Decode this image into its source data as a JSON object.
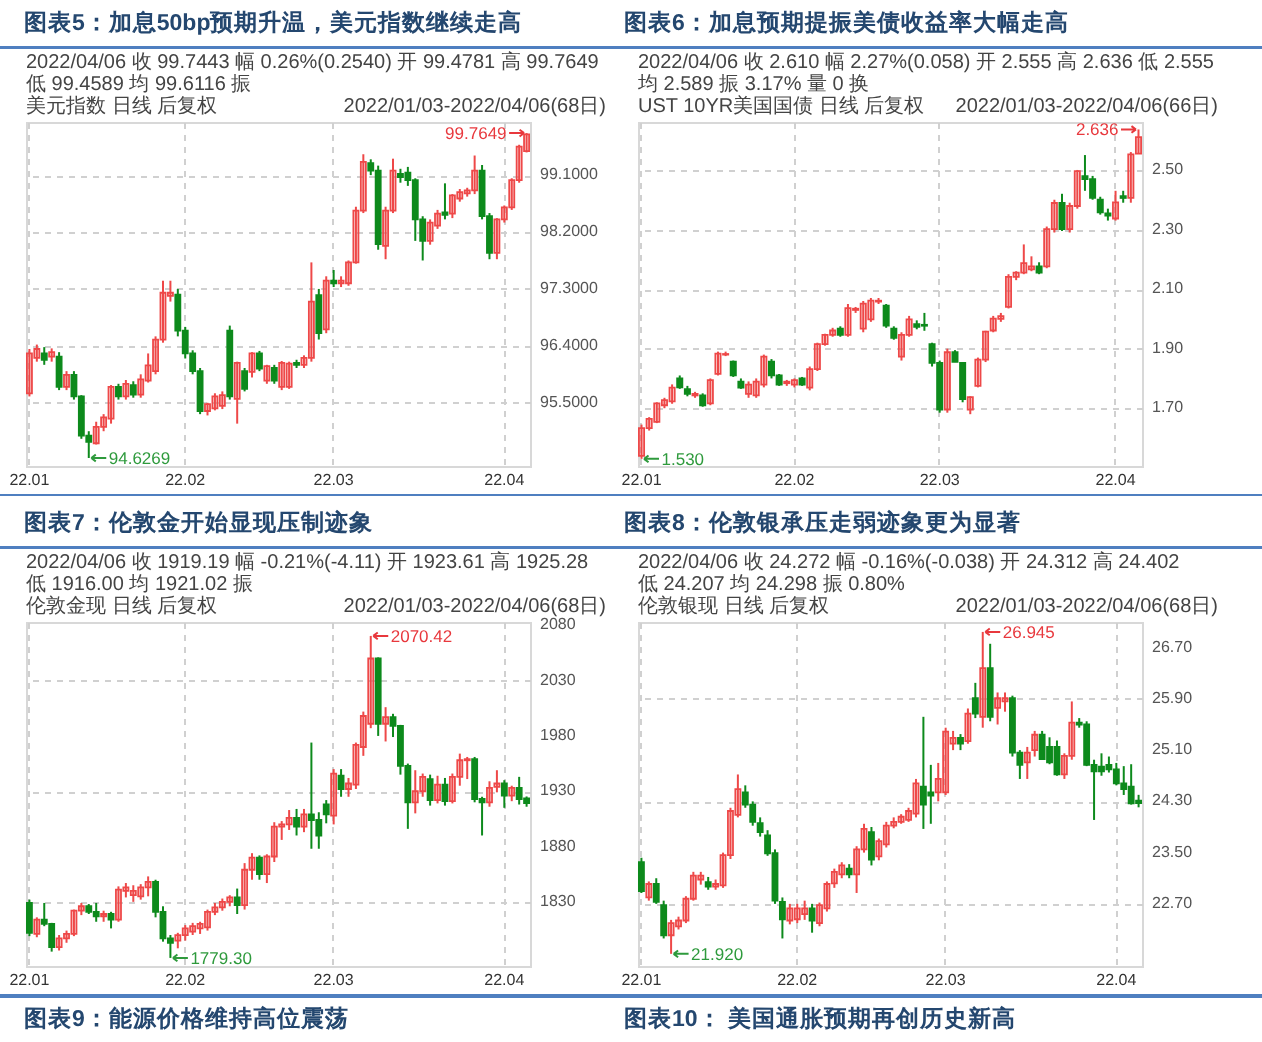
{
  "chart_data": [
    {
      "type": "candlestick",
      "title": "图表5：加息50bp预期升温，美元指数继续走高",
      "grid": true,
      "ylim": [
        94.5,
        99.94
      ],
      "yticks": [
        {
          "value": 95.5,
          "label": "95.5000"
        },
        {
          "value": 96.4,
          "label": "96.4000"
        },
        {
          "value": 97.3,
          "label": "97.3000"
        },
        {
          "value": 98.2,
          "label": "98.2000"
        },
        {
          "value": 99.1,
          "label": "99.1000"
        }
      ],
      "categories": [
        "22.01",
        null,
        null,
        null,
        null,
        null,
        null,
        null,
        null,
        null,
        null,
        null,
        null,
        null,
        null,
        null,
        null,
        null,
        null,
        null,
        null,
        "22.02",
        null,
        null,
        null,
        null,
        null,
        null,
        null,
        null,
        null,
        null,
        null,
        null,
        null,
        null,
        null,
        null,
        null,
        null,
        null,
        "22.03",
        null,
        null,
        null,
        null,
        null,
        null,
        null,
        null,
        null,
        null,
        null,
        null,
        null,
        null,
        null,
        null,
        null,
        null,
        null,
        null,
        null,
        null,
        "22.04",
        null,
        null,
        null
      ],
      "ohlc": [
        [
          95.65,
          96.35,
          95.6,
          96.28
        ],
        [
          96.21,
          96.42,
          96.15,
          96.35
        ],
        [
          96.28,
          96.38,
          96.1,
          96.18
        ],
        [
          96.23,
          96.36,
          96.15,
          96.3
        ],
        [
          96.23,
          96.3,
          95.7,
          95.75
        ],
        [
          95.75,
          96.0,
          95.7,
          95.94
        ],
        [
          95.94,
          96.0,
          95.55,
          95.6
        ],
        [
          95.6,
          95.62,
          94.93,
          94.98
        ],
        [
          94.98,
          95.05,
          94.6269,
          94.88
        ],
        [
          94.86,
          95.2,
          94.84,
          95.12
        ],
        [
          95.12,
          95.32,
          95.05,
          95.27
        ],
        [
          95.25,
          95.78,
          95.17,
          95.75
        ],
        [
          95.75,
          95.8,
          95.55,
          95.6
        ],
        [
          95.6,
          95.86,
          95.55,
          95.8
        ],
        [
          95.78,
          95.84,
          95.58,
          95.63
        ],
        [
          95.63,
          95.95,
          95.58,
          95.87
        ],
        [
          95.85,
          96.28,
          95.82,
          96.09
        ],
        [
          96.0,
          96.55,
          95.95,
          96.5
        ],
        [
          96.5,
          97.43,
          96.45,
          97.24
        ],
        [
          97.19,
          97.43,
          97.1,
          97.24
        ],
        [
          97.21,
          97.3,
          96.55,
          96.64
        ],
        [
          96.64,
          96.7,
          96.2,
          96.28
        ],
        [
          96.28,
          96.33,
          95.95,
          96.0
        ],
        [
          96.0,
          96.05,
          95.32,
          95.37
        ],
        [
          95.37,
          95.5,
          95.3,
          95.48
        ],
        [
          95.41,
          95.65,
          95.38,
          95.6
        ],
        [
          95.45,
          95.68,
          95.4,
          95.62
        ],
        [
          96.64,
          96.72,
          95.55,
          95.6
        ],
        [
          95.56,
          96.15,
          95.17,
          96.13
        ],
        [
          96.0,
          96.05,
          95.68,
          95.72
        ],
        [
          95.99,
          96.3,
          95.9,
          96.28
        ],
        [
          96.28,
          96.32,
          96.0,
          96.04
        ],
        [
          95.85,
          96.1,
          95.8,
          96.08
        ],
        [
          96.05,
          96.1,
          95.8,
          95.85
        ],
        [
          95.75,
          96.16,
          95.7,
          96.13
        ],
        [
          95.75,
          96.15,
          95.72,
          96.12
        ],
        [
          96.13,
          96.18,
          96.05,
          96.1
        ],
        [
          96.1,
          96.25,
          96.05,
          96.21
        ],
        [
          96.21,
          97.72,
          96.15,
          97.1
        ],
        [
          97.2,
          97.3,
          96.5,
          96.6
        ],
        [
          96.66,
          97.5,
          96.6,
          97.43
        ],
        [
          97.43,
          97.6,
          97.33,
          97.39
        ],
        [
          97.39,
          97.5,
          97.33,
          97.43
        ],
        [
          97.39,
          97.75,
          97.35,
          97.72
        ],
        [
          97.72,
          98.6,
          97.7,
          98.54
        ],
        [
          98.54,
          99.43,
          98.5,
          99.31
        ],
        [
          99.29,
          99.35,
          99.1,
          99.17
        ],
        [
          99.17,
          99.25,
          97.92,
          98.01
        ],
        [
          97.98,
          98.6,
          97.77,
          98.54
        ],
        [
          98.54,
          99.36,
          98.5,
          99.17
        ],
        [
          99.12,
          99.2,
          98.98,
          99.07
        ],
        [
          99.14,
          99.23,
          98.93,
          99.02
        ],
        [
          99.02,
          99.05,
          98.06,
          98.4
        ],
        [
          98.4,
          98.45,
          97.75,
          98.06
        ],
        [
          98.06,
          98.4,
          98.0,
          98.35
        ],
        [
          98.3,
          98.55,
          98.25,
          98.49
        ],
        [
          98.51,
          98.97,
          98.4,
          98.47
        ],
        [
          98.49,
          98.8,
          98.42,
          98.78
        ],
        [
          98.73,
          98.88,
          98.68,
          98.83
        ],
        [
          98.81,
          98.9,
          98.76,
          98.86
        ],
        [
          98.86,
          99.41,
          98.8,
          99.17
        ],
        [
          99.17,
          99.26,
          98.4,
          98.45
        ],
        [
          98.45,
          98.5,
          97.77,
          97.87
        ],
        [
          97.87,
          98.42,
          97.77,
          98.4
        ],
        [
          98.4,
          98.62,
          98.35,
          98.59
        ],
        [
          98.59,
          99.05,
          98.55,
          99.02
        ],
        [
          99.02,
          99.58,
          98.98,
          99.55
        ],
        [
          99.4781,
          99.7649,
          99.4589,
          99.7443
        ]
      ],
      "annotations": [
        "2022/04/06 收 99.7443 幅 0.26%(0.2540) 开 99.4781 高 99.7649 低 99.4589 均 99.6116 振",
        "美元指数 日线 后复权",
        "2022/01/03-2022/04/06(68日)",
        "99.7649",
        "94.6269"
      ]
    },
    {
      "type": "candlestick",
      "title": "图表6：加息预期提振美债收益率大幅走高",
      "grid": true,
      "ylim": [
        1.506,
        2.661
      ],
      "yticks": [
        {
          "value": 1.7,
          "label": "1.70"
        },
        {
          "value": 1.9,
          "label": "1.90"
        },
        {
          "value": 2.1,
          "label": "2.10"
        },
        {
          "value": 2.3,
          "label": "2.30"
        },
        {
          "value": 2.5,
          "label": "2.50"
        }
      ],
      "categories": [
        "22.01",
        null,
        null,
        null,
        null,
        null,
        null,
        null,
        null,
        null,
        null,
        null,
        null,
        null,
        null,
        null,
        null,
        null,
        null,
        null,
        "22.02",
        null,
        null,
        null,
        null,
        null,
        null,
        null,
        null,
        null,
        null,
        null,
        null,
        null,
        null,
        null,
        null,
        null,
        null,
        "22.03",
        null,
        null,
        null,
        null,
        null,
        null,
        null,
        null,
        null,
        null,
        null,
        null,
        null,
        null,
        null,
        null,
        null,
        null,
        null,
        null,
        null,
        null,
        "22.04",
        null,
        null,
        null
      ],
      "ohlc": [
        [
          1.54,
          1.645,
          1.53,
          1.633
        ],
        [
          1.633,
          1.67,
          1.625,
          1.664
        ],
        [
          1.654,
          1.72,
          1.65,
          1.716
        ],
        [
          1.71,
          1.735,
          1.7,
          1.727
        ],
        [
          1.723,
          1.78,
          1.715,
          1.769
        ],
        [
          1.8,
          1.81,
          1.765,
          1.77
        ],
        [
          1.764,
          1.775,
          1.74,
          1.748
        ],
        [
          1.743,
          1.755,
          1.735,
          1.748
        ],
        [
          1.743,
          1.75,
          1.705,
          1.71
        ],
        [
          1.716,
          1.8,
          1.71,
          1.794
        ],
        [
          1.815,
          1.89,
          1.81,
          1.883
        ],
        [
          1.88,
          1.89,
          1.875,
          1.882
        ],
        [
          1.856,
          1.86,
          1.805,
          1.81
        ],
        [
          1.789,
          1.8,
          1.765,
          1.769
        ],
        [
          1.748,
          1.79,
          1.735,
          1.779
        ],
        [
          1.743,
          1.8,
          1.735,
          1.789
        ],
        [
          1.779,
          1.88,
          1.77,
          1.873
        ],
        [
          1.856,
          1.865,
          1.8,
          1.81
        ],
        [
          1.81,
          1.815,
          1.775,
          1.779
        ],
        [
          1.784,
          1.795,
          1.775,
          1.789
        ],
        [
          1.779,
          1.8,
          1.77,
          1.794
        ],
        [
          1.8,
          1.805,
          1.775,
          1.779
        ],
        [
          1.769,
          1.84,
          1.76,
          1.831
        ],
        [
          1.831,
          1.92,
          1.825,
          1.915
        ],
        [
          1.915,
          1.95,
          1.91,
          1.946
        ],
        [
          1.946,
          1.97,
          1.94,
          1.961
        ],
        [
          1.967,
          1.975,
          1.94,
          1.946
        ],
        [
          1.946,
          2.05,
          1.94,
          2.036
        ],
        [
          2.03,
          2.04,
          2.02,
          2.034
        ],
        [
          1.967,
          2.06,
          1.955,
          2.051
        ],
        [
          1.998,
          2.07,
          1.99,
          2.061
        ],
        [
          2.058,
          2.07,
          2.05,
          2.061
        ],
        [
          2.044,
          2.05,
          1.97,
          1.977
        ],
        [
          1.967,
          1.975,
          1.93,
          1.936
        ],
        [
          1.873,
          1.955,
          1.86,
          1.946
        ],
        [
          1.946,
          2.01,
          1.94,
          1.998
        ],
        [
          1.982,
          1.995,
          1.965,
          1.973
        ],
        [
          1.98,
          2.02,
          1.96,
          1.977
        ],
        [
          1.915,
          1.92,
          1.84,
          1.852
        ],
        [
          1.852,
          1.86,
          1.685,
          1.695
        ],
        [
          1.695,
          1.9,
          1.685,
          1.888
        ],
        [
          1.888,
          1.895,
          1.855,
          1.856
        ],
        [
          1.852,
          1.855,
          1.72,
          1.731
        ],
        [
          1.695,
          1.74,
          1.68,
          1.737
        ],
        [
          1.775,
          1.87,
          1.77,
          1.863
        ],
        [
          1.863,
          1.96,
          1.855,
          1.957
        ],
        [
          1.961,
          2.01,
          1.955,
          2.001
        ],
        [
          2.0,
          2.02,
          1.99,
          2.009
        ],
        [
          2.04,
          2.15,
          2.035,
          2.141
        ],
        [
          2.141,
          2.16,
          2.13,
          2.155
        ],
        [
          2.155,
          2.25,
          2.15,
          2.187
        ],
        [
          2.166,
          2.21,
          2.16,
          2.176
        ],
        [
          2.176,
          2.19,
          2.15,
          2.155
        ],
        [
          2.176,
          2.31,
          2.17,
          2.301
        ],
        [
          2.301,
          2.4,
          2.29,
          2.389
        ],
        [
          2.389,
          2.42,
          2.295,
          2.301
        ],
        [
          2.301,
          2.39,
          2.29,
          2.379
        ],
        [
          2.379,
          2.5,
          2.37,
          2.496
        ],
        [
          2.479,
          2.55,
          2.43,
          2.469
        ],
        [
          2.469,
          2.48,
          2.4,
          2.406
        ],
        [
          2.4,
          2.41,
          2.35,
          2.358
        ],
        [
          2.354,
          2.37,
          2.33,
          2.347
        ],
        [
          2.337,
          2.43,
          2.33,
          2.391
        ],
        [
          2.412,
          2.43,
          2.39,
          2.406
        ],
        [
          2.406,
          2.56,
          2.39,
          2.552
        ],
        [
          2.555,
          2.636,
          2.555,
          2.61
        ]
      ],
      "annotations": [
        "2022/04/06 收 2.610 幅 2.27%(0.058) 开 2.555 高 2.636 低 2.555 均 2.589 振 3.17% 量 0 换",
        "UST 10YR美国国债 日线 后复权",
        "2022/01/03-2022/04/06(66日)",
        "2.636",
        "1.530"
      ]
    },
    {
      "type": "candlestick",
      "title": "图表7：伦敦金开始显现压制迹象",
      "grid": true,
      "ylim": [
        1772,
        2083
      ],
      "yticks": [
        1830,
        1880,
        1930,
        1980,
        2030,
        2080
      ],
      "categories": [
        "22.01",
        null,
        null,
        null,
        null,
        null,
        null,
        null,
        null,
        null,
        null,
        null,
        null,
        null,
        null,
        null,
        null,
        null,
        null,
        null,
        null,
        "22.02",
        null,
        null,
        null,
        null,
        null,
        null,
        null,
        null,
        null,
        null,
        null,
        null,
        null,
        null,
        null,
        null,
        null,
        null,
        null,
        "22.03",
        null,
        null,
        null,
        null,
        null,
        null,
        null,
        null,
        null,
        null,
        null,
        null,
        null,
        null,
        null,
        null,
        null,
        null,
        null,
        null,
        null,
        null,
        "22.04",
        null,
        null,
        null
      ],
      "ohlc": [
        [
          1829,
          1832,
          1799,
          1802
        ],
        [
          1801,
          1816,
          1798,
          1814
        ],
        [
          1814,
          1829,
          1808,
          1810
        ],
        [
          1810,
          1811,
          1785,
          1789
        ],
        [
          1789,
          1800,
          1786,
          1797
        ],
        [
          1797,
          1804,
          1793,
          1801
        ],
        [
          1801,
          1823,
          1799,
          1822
        ],
        [
          1822,
          1829,
          1818,
          1826
        ],
        [
          1826,
          1828,
          1819,
          1821
        ],
        [
          1821,
          1829,
          1812,
          1817
        ],
        [
          1817,
          1822,
          1812,
          1819
        ],
        [
          1819,
          1821,
          1806,
          1814
        ],
        [
          1814,
          1844,
          1812,
          1841
        ],
        [
          1840,
          1847,
          1834,
          1843
        ],
        [
          1836,
          1845,
          1830,
          1840
        ],
        [
          1835,
          1846,
          1832,
          1843
        ],
        [
          1843,
          1853,
          1835,
          1848
        ],
        [
          1848,
          1850,
          1816,
          1821
        ],
        [
          1821,
          1826,
          1794,
          1797
        ],
        [
          1797,
          1800,
          1779.3,
          1793
        ],
        [
          1795,
          1802,
          1788,
          1800
        ],
        [
          1800,
          1809,
          1795,
          1806
        ],
        [
          1803,
          1811,
          1800,
          1808
        ],
        [
          1806,
          1812,
          1801,
          1810
        ],
        [
          1807,
          1823,
          1804,
          1821
        ],
        [
          1821,
          1829,
          1818,
          1825
        ],
        [
          1825,
          1833,
          1822,
          1830
        ],
        [
          1830,
          1836,
          1826,
          1834
        ],
        [
          1834,
          1842,
          1819,
          1827
        ],
        [
          1827,
          1865,
          1823,
          1859
        ],
        [
          1859,
          1874,
          1850,
          1870
        ],
        [
          1870,
          1872,
          1850,
          1855
        ],
        [
          1855,
          1873,
          1847,
          1871
        ],
        [
          1871,
          1902,
          1866,
          1898
        ],
        [
          1898,
          1903,
          1886,
          1900
        ],
        [
          1900,
          1913,
          1895,
          1906
        ],
        [
          1906,
          1914,
          1890,
          1898
        ],
        [
          1898,
          1914,
          1893,
          1909
        ],
        [
          1909,
          1974,
          1878,
          1904
        ],
        [
          1904,
          1911,
          1878,
          1890
        ],
        [
          1918,
          1922,
          1901,
          1909
        ],
        [
          1908,
          1950,
          1900,
          1946
        ],
        [
          1944,
          1950,
          1925,
          1932
        ],
        [
          1932,
          1942,
          1925,
          1937
        ],
        [
          1936,
          1974,
          1932,
          1972
        ],
        [
          1970,
          2002,
          1962,
          1998
        ],
        [
          1991,
          2070.42,
          1987,
          2050
        ],
        [
          2050,
          2051,
          1980,
          1991
        ],
        [
          1991,
          2006,
          1975,
          1997
        ],
        [
          1997,
          2000,
          1979,
          1989
        ],
        [
          1989,
          1990,
          1945,
          1953
        ],
        [
          1953,
          1955,
          1896,
          1920
        ],
        [
          1920,
          1949,
          1910,
          1930
        ],
        [
          1930,
          1946,
          1925,
          1943
        ],
        [
          1941,
          1945,
          1917,
          1922
        ],
        [
          1922,
          1944,
          1919,
          1936
        ],
        [
          1936,
          1942,
          1917,
          1921
        ],
        [
          1921,
          1946,
          1919,
          1943
        ],
        [
          1943,
          1964,
          1935,
          1958
        ],
        [
          1958,
          1961,
          1941,
          1959
        ],
        [
          1959,
          1961,
          1920,
          1923
        ],
        [
          1923,
          1925,
          1890,
          1920
        ],
        [
          1920,
          1939,
          1916,
          1933
        ],
        [
          1934,
          1949,
          1929,
          1937
        ],
        [
          1937,
          1940,
          1915,
          1926
        ],
        [
          1926,
          1935,
          1921,
          1933
        ],
        [
          1933,
          1943,
          1918,
          1923
        ],
        [
          1923.61,
          1925.28,
          1916.0,
          1919.19
        ]
      ],
      "annotations": [
        "2022/04/06 收 1919.19 幅 -0.21%(-4.11) 开 1923.61 高 1925.28 低 1916.00 均 1921.02 振",
        "伦敦金现 日线 后复权",
        "2022/01/03-2022/04/06(68日)",
        "2070.42",
        "1779.30",
        "图表9：能源价格维持高位震荡"
      ]
    },
    {
      "type": "candlestick",
      "title": "图表8：伦敦银承压走弱迹象更为显著",
      "grid": true,
      "ylim": [
        21.73,
        27.1
      ],
      "yticks": [
        {
          "value": 22.7,
          "label": "22.70"
        },
        {
          "value": 23.5,
          "label": "23.50"
        },
        {
          "value": 24.3,
          "label": "24.30"
        },
        {
          "value": 25.1,
          "label": "25.10"
        },
        {
          "value": 25.9,
          "label": "25.90"
        },
        {
          "value": 26.7,
          "label": "26.70"
        }
      ],
      "categories": [
        "22.01",
        null,
        null,
        null,
        null,
        null,
        null,
        null,
        null,
        null,
        null,
        null,
        null,
        null,
        null,
        null,
        null,
        null,
        null,
        null,
        null,
        "22.02",
        null,
        null,
        null,
        null,
        null,
        null,
        null,
        null,
        null,
        null,
        null,
        null,
        null,
        null,
        null,
        null,
        null,
        null,
        null,
        "22.03",
        null,
        null,
        null,
        null,
        null,
        null,
        null,
        null,
        null,
        null,
        null,
        null,
        null,
        null,
        null,
        null,
        null,
        null,
        null,
        null,
        null,
        null,
        "22.04",
        null,
        null,
        null
      ],
      "ohlc": [
        [
          23.35,
          23.42,
          22.87,
          22.9
        ],
        [
          22.8,
          23.05,
          22.75,
          23.01
        ],
        [
          23.01,
          23.1,
          22.7,
          22.73
        ],
        [
          22.68,
          22.75,
          22.16,
          22.21
        ],
        [
          22.21,
          22.45,
          21.92,
          22.4
        ],
        [
          22.35,
          22.5,
          22.3,
          22.44
        ],
        [
          22.44,
          22.82,
          22.4,
          22.78
        ],
        [
          22.78,
          23.2,
          22.75,
          23.14
        ],
        [
          23.08,
          23.2,
          23.0,
          23.14
        ],
        [
          23.04,
          23.12,
          22.92,
          22.97
        ],
        [
          22.97,
          23.08,
          22.92,
          23.01
        ],
        [
          22.99,
          23.5,
          22.95,
          23.46
        ],
        [
          23.46,
          24.2,
          23.4,
          24.15
        ],
        [
          24.09,
          24.72,
          24.05,
          24.49
        ],
        [
          24.44,
          24.55,
          24.2,
          24.25
        ],
        [
          24.25,
          24.3,
          23.92,
          23.98
        ],
        [
          23.96,
          24.05,
          23.75,
          23.82
        ],
        [
          23.77,
          23.85,
          23.45,
          23.49
        ],
        [
          23.49,
          23.55,
          22.7,
          22.75
        ],
        [
          22.73,
          22.8,
          22.16,
          22.46
        ],
        [
          22.44,
          22.7,
          22.38,
          22.63
        ],
        [
          22.46,
          22.7,
          22.4,
          22.63
        ],
        [
          22.54,
          22.75,
          22.45,
          22.63
        ],
        [
          22.63,
          22.7,
          22.25,
          22.44
        ],
        [
          22.4,
          22.72,
          22.35,
          22.68
        ],
        [
          22.63,
          23.05,
          22.58,
          23.01
        ],
        [
          23.02,
          23.25,
          22.95,
          23.2
        ],
        [
          23.16,
          23.35,
          23.1,
          23.3
        ],
        [
          23.25,
          23.32,
          23.1,
          23.16
        ],
        [
          23.16,
          23.6,
          22.87,
          23.55
        ],
        [
          23.55,
          23.95,
          23.5,
          23.87
        ],
        [
          23.82,
          23.9,
          23.3,
          23.39
        ],
        [
          23.44,
          23.72,
          23.38,
          23.68
        ],
        [
          23.63,
          23.98,
          23.58,
          23.92
        ],
        [
          23.92,
          24.05,
          23.88,
          23.98
        ],
        [
          23.98,
          24.1,
          23.95,
          24.06
        ],
        [
          24.01,
          24.2,
          23.98,
          24.15
        ],
        [
          24.11,
          24.65,
          24.05,
          24.58
        ],
        [
          24.53,
          25.62,
          23.87,
          24.25
        ],
        [
          24.44,
          24.87,
          23.95,
          24.39
        ],
        [
          24.44,
          24.9,
          24.3,
          24.65
        ],
        [
          24.44,
          25.45,
          24.4,
          25.39
        ],
        [
          25.2,
          25.4,
          25.1,
          25.29
        ],
        [
          25.29,
          25.35,
          25.1,
          25.2
        ],
        [
          25.24,
          25.75,
          25.2,
          25.67
        ],
        [
          25.91,
          26.15,
          25.6,
          25.67
        ],
        [
          25.62,
          26.945,
          25.45,
          26.38
        ],
        [
          26.38,
          26.76,
          25.55,
          25.62
        ],
        [
          25.76,
          26.0,
          25.5,
          25.91
        ],
        [
          25.86,
          26.0,
          25.7,
          25.91
        ],
        [
          25.91,
          25.95,
          25.0,
          25.06
        ],
        [
          25.06,
          25.1,
          24.65,
          24.87
        ],
        [
          24.91,
          25.15,
          24.65,
          25.06
        ],
        [
          25.1,
          25.4,
          25.0,
          25.34
        ],
        [
          25.34,
          25.4,
          24.95,
          24.96
        ],
        [
          25.15,
          25.3,
          24.88,
          24.91
        ],
        [
          25.15,
          25.25,
          24.7,
          24.72
        ],
        [
          24.72,
          25.05,
          24.65,
          25.01
        ],
        [
          25.01,
          25.86,
          24.95,
          25.53
        ],
        [
          25.53,
          25.6,
          25.45,
          25.5
        ],
        [
          25.5,
          25.55,
          24.85,
          24.87
        ],
        [
          24.87,
          24.95,
          24.01,
          24.77
        ],
        [
          24.84,
          25.05,
          24.7,
          24.77
        ],
        [
          24.87,
          25.0,
          24.75,
          24.8
        ],
        [
          24.8,
          24.9,
          24.55,
          24.58
        ],
        [
          24.58,
          24.85,
          24.4,
          24.49
        ],
        [
          24.53,
          24.88,
          24.25,
          24.27
        ],
        [
          24.312,
          24.402,
          24.207,
          24.272
        ]
      ],
      "annotations": [
        "2022/04/06 收 24.272 幅 -0.16%(-0.038) 开 24.312 高 24.402 低 24.207 均 24.298 振 0.80%",
        "伦敦银现 日线 后复权",
        "2022/01/03-2022/04/06(68日)",
        "26.945",
        "21.920",
        "图表10： 美国通胀预期再创历史新高"
      ]
    }
  ]
}
